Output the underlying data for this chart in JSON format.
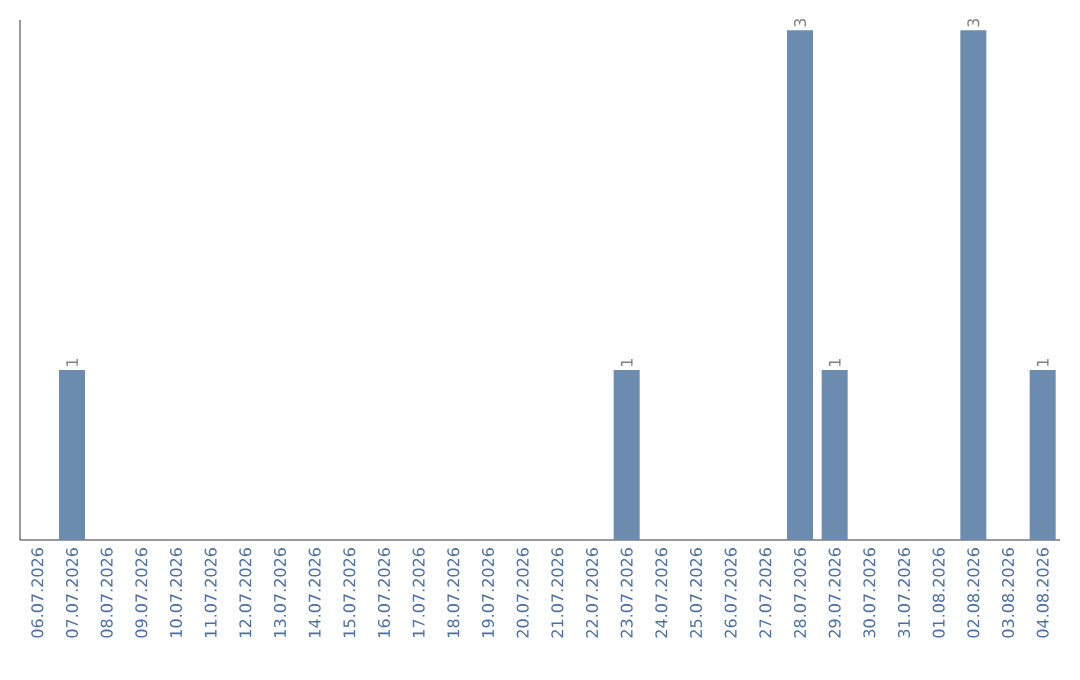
{
  "chart_data": {
    "type": "bar",
    "categories": [
      "06.07.2026",
      "07.07.2026",
      "08.07.2026",
      "09.07.2026",
      "10.07.2026",
      "11.07.2026",
      "12.07.2026",
      "13.07.2026",
      "14.07.2026",
      "15.07.2026",
      "16.07.2026",
      "17.07.2026",
      "18.07.2026",
      "19.07.2026",
      "20.07.2026",
      "21.07.2026",
      "22.07.2026",
      "23.07.2026",
      "24.07.2026",
      "25.07.2026",
      "26.07.2026",
      "27.07.2026",
      "28.07.2026",
      "29.07.2026",
      "30.07.2026",
      "31.07.2026",
      "01.08.2026",
      "02.08.2026",
      "03.08.2026",
      "04.08.2026"
    ],
    "values": [
      0,
      1,
      0,
      0,
      0,
      0,
      0,
      0,
      0,
      0,
      0,
      0,
      0,
      0,
      0,
      0,
      0,
      1,
      0,
      0,
      0,
      0,
      3,
      1,
      0,
      0,
      0,
      3,
      0,
      1
    ],
    "value_labels": [
      null,
      "1",
      null,
      null,
      null,
      null,
      null,
      null,
      null,
      null,
      null,
      null,
      null,
      null,
      null,
      null,
      null,
      "1",
      null,
      null,
      null,
      null,
      "3",
      "1",
      null,
      null,
      null,
      "3",
      null,
      "1"
    ],
    "color": "#6b8cae",
    "ylim": [
      0,
      3
    ],
    "tick_labels": "x"
  }
}
